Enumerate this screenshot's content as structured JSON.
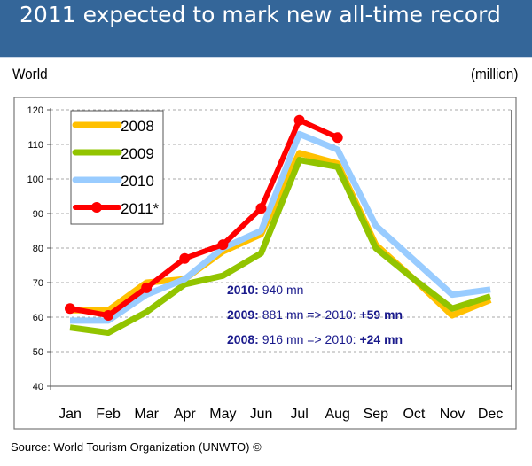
{
  "header": {
    "title": "2011 expected to mark new all-time record"
  },
  "region_label": "World",
  "unit_label": "(million)",
  "source": "Source: World Tourism Organization (UNWTO) ©",
  "annotations": [
    {
      "bold": "2010:",
      "text": " 940 mn",
      "bold2": ""
    },
    {
      "bold": "2009:",
      "text": " 881 mn => 2010: ",
      "bold2": "+59 mn"
    },
    {
      "bold": "2008:",
      "text": " 916 mn => 2010: ",
      "bold2": "+24 mn"
    }
  ],
  "chart_data": {
    "type": "line",
    "title": "2011 expected to mark new all-time record",
    "xlabel": "",
    "ylabel": "(million)",
    "ylim": [
      40,
      120
    ],
    "yticks": [
      40,
      50,
      60,
      70,
      80,
      90,
      100,
      110,
      120
    ],
    "grid": true,
    "legend": "top-left",
    "categories": [
      "Jan",
      "Feb",
      "Mar",
      "Apr",
      "May",
      "Jun",
      "Jul",
      "Aug",
      "Sep",
      "Oct",
      "Nov",
      "Dec"
    ],
    "series": [
      {
        "name": "2008",
        "color": "#ffc000",
        "values": [
          62,
          62,
          70,
          71,
          79,
          84,
          107.5,
          104.5,
          81,
          71,
          60.5,
          65
        ]
      },
      {
        "name": "2009",
        "color": "#92c400",
        "values": [
          57,
          55.5,
          61.5,
          69.5,
          72,
          78.5,
          105.5,
          103.5,
          80,
          71,
          62.5,
          66
        ]
      },
      {
        "name": "2010",
        "color": "#99ccff",
        "values": [
          59,
          59,
          66.5,
          71,
          80,
          85,
          113,
          108.5,
          86.5,
          76.5,
          66.5,
          68
        ]
      },
      {
        "name": "2011*",
        "color": "#ff0000",
        "markers": true,
        "values": [
          62.5,
          60.5,
          68.5,
          77,
          81,
          91.5,
          117,
          112,
          null,
          null,
          null,
          null
        ]
      }
    ]
  }
}
